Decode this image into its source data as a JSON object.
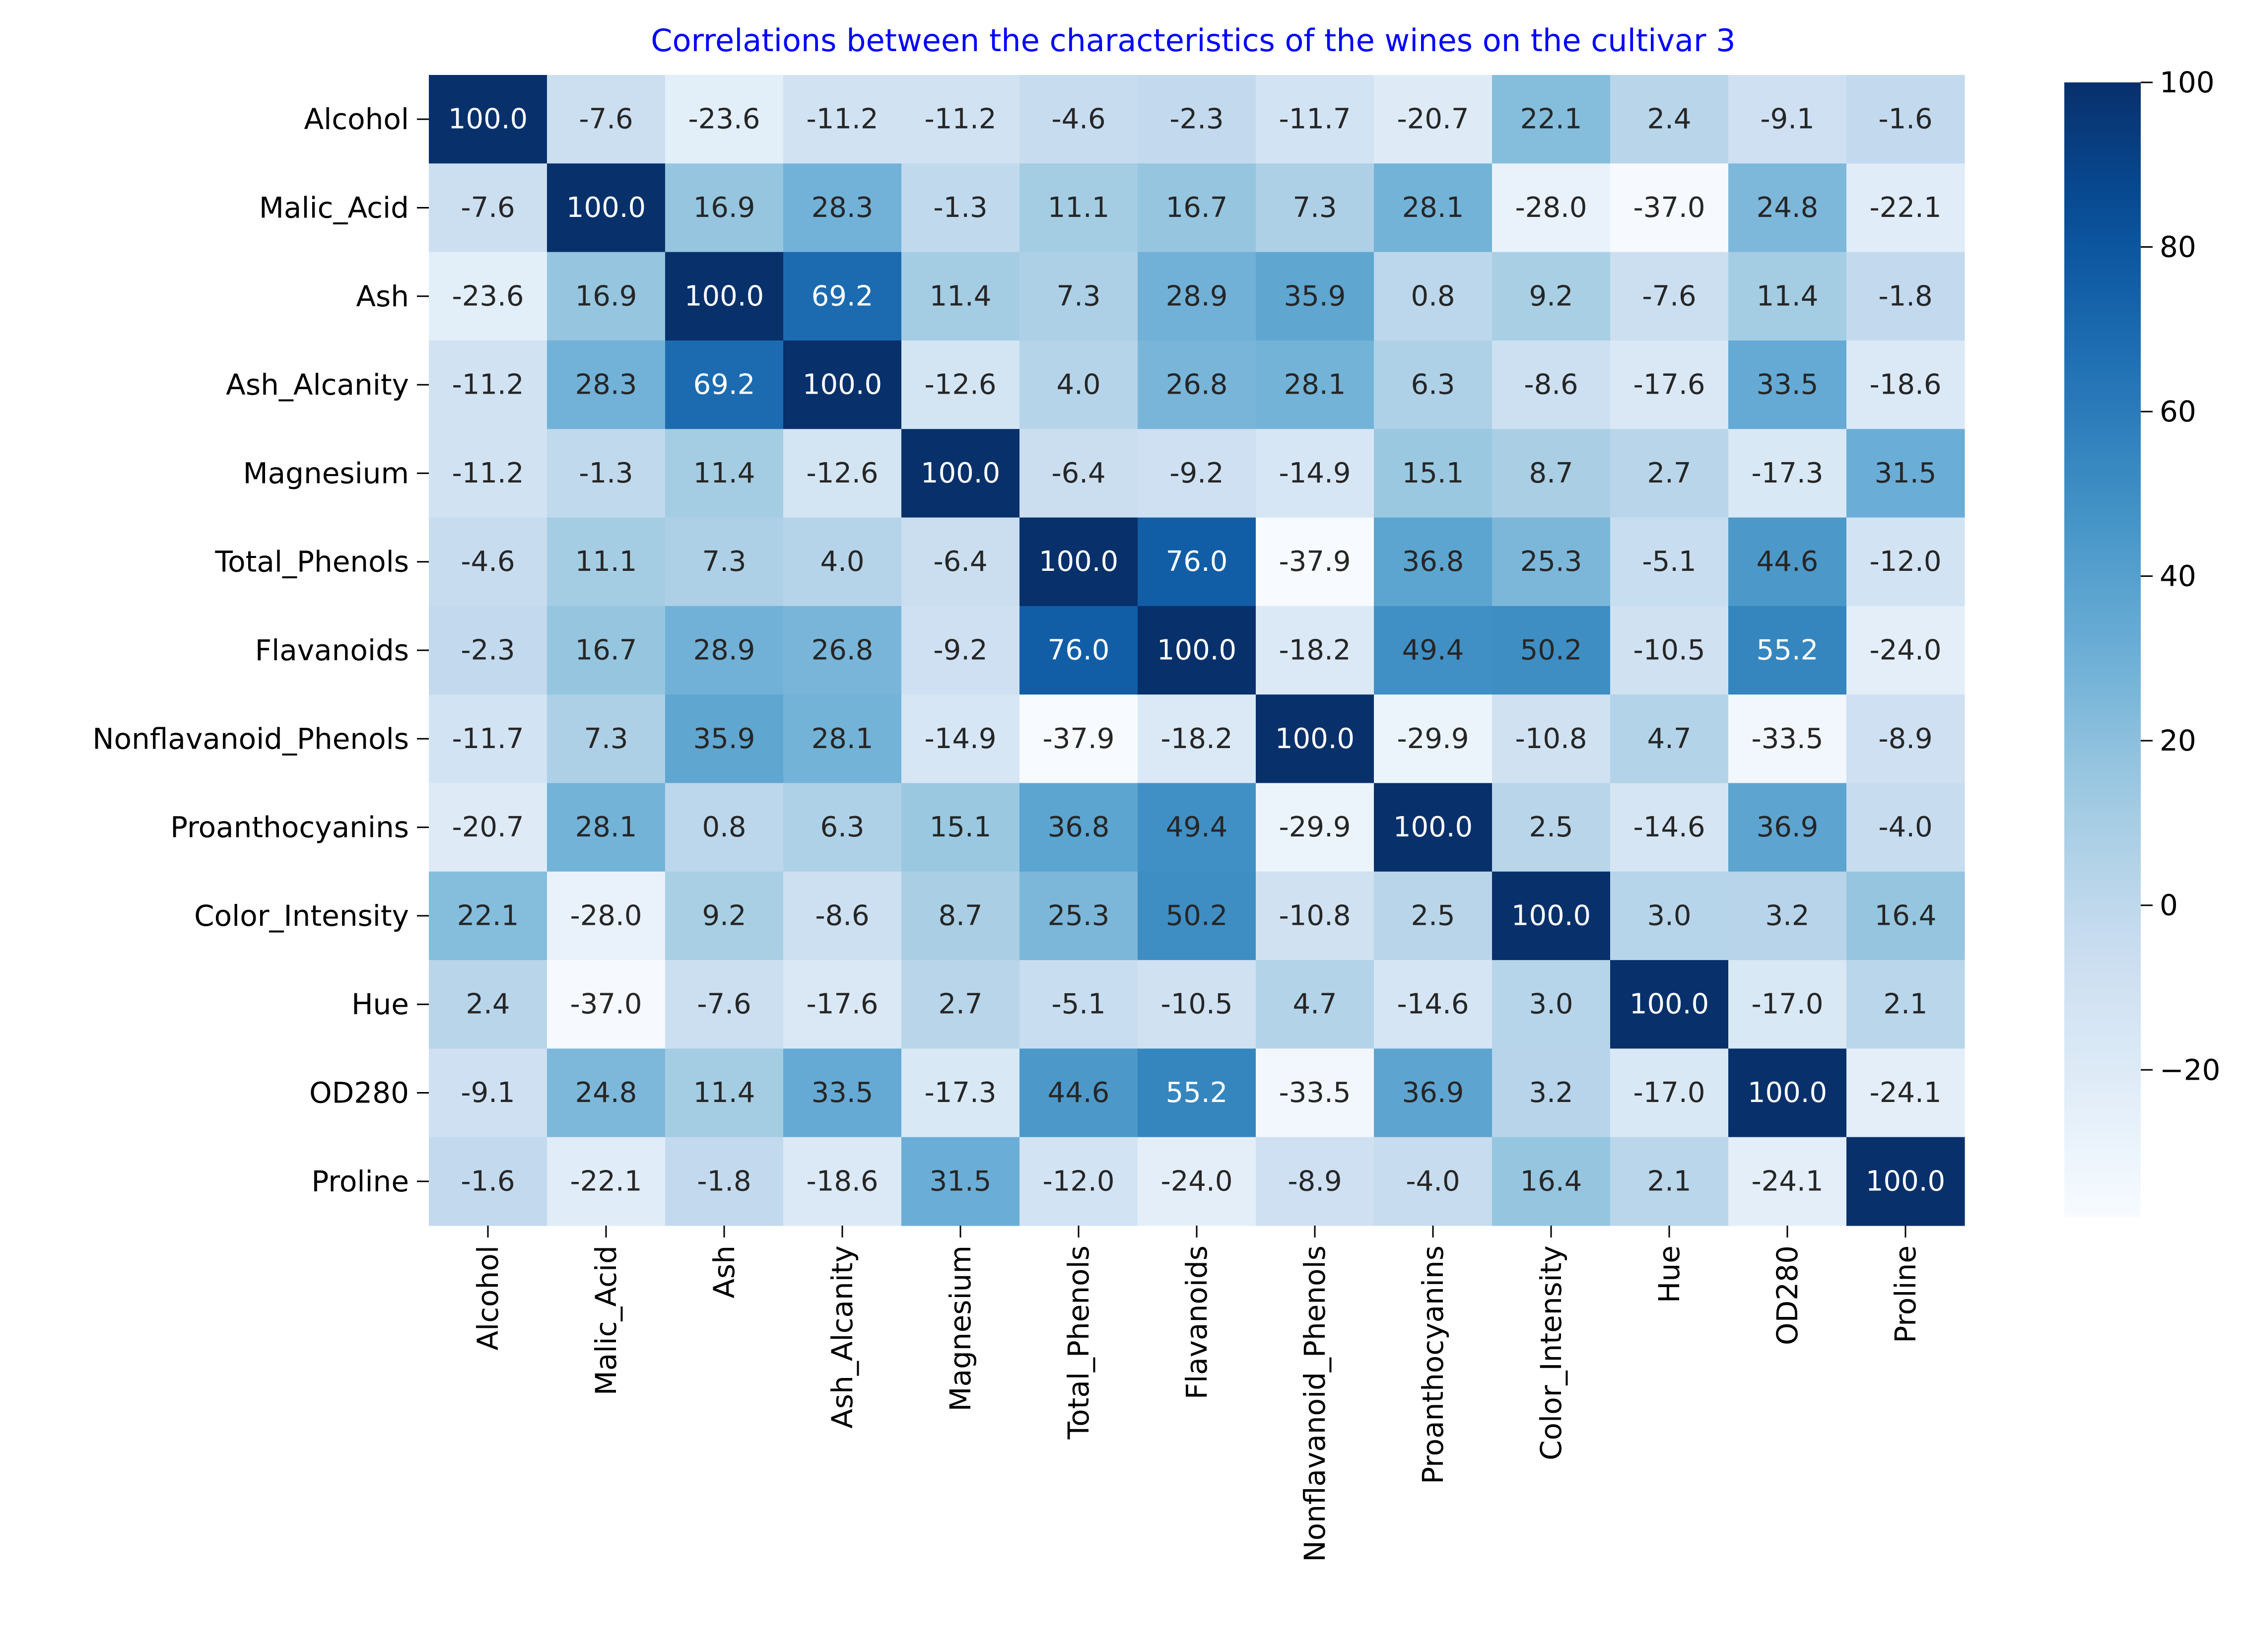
{
  "chart_data": {
    "type": "heatmap",
    "title": "Correlations between the characteristics of the wines on the cultivar 3",
    "title_color": "#0000ff",
    "colormap": "Blues",
    "labels": [
      "Alcohol",
      "Malic_Acid",
      "Ash",
      "Ash_Alcanity",
      "Magnesium",
      "Total_Phenols",
      "Flavanoids",
      "Nonflavanoid_Phenols",
      "Proanthocyanins",
      "Color_Intensity",
      "Hue",
      "OD280",
      "Proline"
    ],
    "values": [
      [
        100.0,
        -7.6,
        -23.6,
        -11.2,
        -11.2,
        -4.6,
        -2.3,
        -11.7,
        -20.7,
        22.1,
        2.4,
        -9.1,
        -1.6
      ],
      [
        -7.6,
        100.0,
        16.9,
        28.3,
        -1.3,
        11.1,
        16.7,
        7.3,
        28.1,
        -28.0,
        -37.0,
        24.8,
        -22.1
      ],
      [
        -23.6,
        16.9,
        100.0,
        69.2,
        11.4,
        7.3,
        28.9,
        35.9,
        0.8,
        9.2,
        -7.6,
        11.4,
        -1.8
      ],
      [
        -11.2,
        28.3,
        69.2,
        100.0,
        -12.6,
        4.0,
        26.8,
        28.1,
        6.3,
        -8.6,
        -17.6,
        33.5,
        -18.6
      ],
      [
        -11.2,
        -1.3,
        11.4,
        -12.6,
        100.0,
        -6.4,
        -9.2,
        -14.9,
        15.1,
        8.7,
        2.7,
        -17.3,
        31.5
      ],
      [
        -4.6,
        11.1,
        7.3,
        4.0,
        -6.4,
        100.0,
        76.0,
        -37.9,
        36.8,
        25.3,
        -5.1,
        44.6,
        -12.0
      ],
      [
        -2.3,
        16.7,
        28.9,
        26.8,
        -9.2,
        76.0,
        100.0,
        -18.2,
        49.4,
        50.2,
        -10.5,
        55.2,
        -24.0
      ],
      [
        -11.7,
        7.3,
        35.9,
        28.1,
        -14.9,
        -37.9,
        -18.2,
        100.0,
        -29.9,
        -10.8,
        4.7,
        -33.5,
        -8.9
      ],
      [
        -20.7,
        28.1,
        0.8,
        6.3,
        15.1,
        36.8,
        49.4,
        -29.9,
        100.0,
        2.5,
        -14.6,
        36.9,
        -4.0
      ],
      [
        22.1,
        -28.0,
        9.2,
        -8.6,
        8.7,
        25.3,
        50.2,
        -10.8,
        2.5,
        100.0,
        3.0,
        3.2,
        16.4
      ],
      [
        2.4,
        -37.0,
        -7.6,
        -17.6,
        2.7,
        -5.1,
        -10.5,
        4.7,
        -14.6,
        3.0,
        100.0,
        -17.0,
        2.1
      ],
      [
        -9.1,
        24.8,
        11.4,
        33.5,
        -17.3,
        44.6,
        55.2,
        -33.5,
        36.9,
        3.2,
        -17.0,
        100.0,
        -24.1
      ],
      [
        -1.6,
        -22.1,
        -1.8,
        -18.6,
        31.5,
        -12.0,
        -24.0,
        -8.9,
        -4.0,
        16.4,
        2.1,
        -24.1,
        100.0
      ]
    ],
    "vmin": -37.9,
    "vmax": 100.0,
    "colorbar_ticks": [
      -20,
      0,
      20,
      40,
      60,
      80,
      100
    ],
    "colorbar_tick_labels": [
      "−20",
      "0",
      "20",
      "40",
      "60",
      "80",
      "100"
    ]
  }
}
